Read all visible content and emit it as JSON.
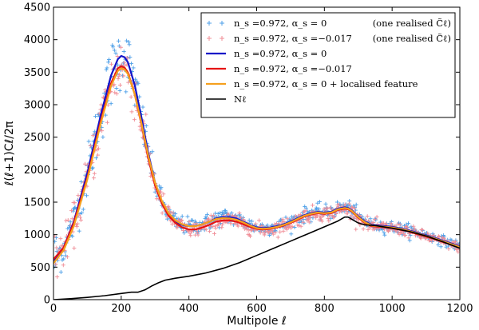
{
  "chart_data": {
    "type": "line",
    "title": "",
    "xlabel": "Multipole ℓ",
    "ylabel": "ℓ(ℓ+1)Cℓ/2π",
    "xlim": [
      0,
      1200
    ],
    "ylim": [
      0,
      4500
    ],
    "xticks": [
      0,
      200,
      400,
      600,
      800,
      1000,
      1200
    ],
    "yticks": [
      0,
      500,
      1000,
      1500,
      2000,
      2500,
      3000,
      3500,
      4000,
      4500
    ],
    "legend_position": "top-right",
    "series": [
      {
        "name": "n_s =0.972, α_s = 0",
        "note": "(one realised C̃ℓ)",
        "kind": "scatter",
        "marker": "+",
        "color": "#4c9fe8",
        "model": "blue"
      },
      {
        "name": "n_s =0.972, α_s =−0.017",
        "note": "(one realised C̃ℓ)",
        "kind": "scatter",
        "marker": "+",
        "color": "#f08c96",
        "model": "red"
      },
      {
        "name": "n_s =0.972, α_s = 0",
        "kind": "line",
        "color": "#1414c8",
        "x": [
          0,
          30,
          60,
          100,
          140,
          170,
          190,
          200,
          210,
          220,
          240,
          260,
          280,
          300,
          320,
          340,
          360,
          380,
          400,
          420,
          440,
          460,
          480,
          500,
          520,
          540,
          560,
          580,
          600,
          620,
          640,
          660,
          680,
          700,
          720,
          740,
          760,
          780,
          800,
          820,
          840,
          860,
          870,
          880,
          900,
          920,
          940,
          960,
          980,
          1000,
          1040,
          1080,
          1120,
          1160,
          1200
        ],
        "y": [
          600,
          800,
          1200,
          1950,
          2850,
          3450,
          3700,
          3750,
          3730,
          3650,
          3300,
          2800,
          2250,
          1800,
          1500,
          1300,
          1200,
          1150,
          1130,
          1135,
          1160,
          1200,
          1250,
          1270,
          1270,
          1250,
          1200,
          1150,
          1110,
          1100,
          1110,
          1130,
          1160,
          1200,
          1250,
          1300,
          1330,
          1350,
          1340,
          1350,
          1400,
          1420,
          1410,
          1380,
          1280,
          1200,
          1150,
          1140,
          1130,
          1120,
          1080,
          1020,
          960,
          890,
          820
        ]
      },
      {
        "name": "n_s =0.972, α_s =−0.017",
        "kind": "line",
        "color": "#e61414",
        "x": [
          0,
          30,
          60,
          100,
          140,
          170,
          190,
          200,
          210,
          220,
          240,
          260,
          280,
          300,
          320,
          340,
          360,
          380,
          400,
          420,
          440,
          460,
          480,
          500,
          520,
          540,
          560,
          580,
          600,
          620,
          640,
          660,
          680,
          700,
          720,
          740,
          760,
          780,
          800,
          820,
          840,
          860,
          870,
          880,
          900,
          920,
          940,
          960,
          980,
          1000,
          1040,
          1080,
          1120,
          1160,
          1200
        ],
        "y": [
          620,
          800,
          1180,
          1880,
          2760,
          3330,
          3560,
          3590,
          3570,
          3490,
          3160,
          2690,
          2170,
          1760,
          1480,
          1290,
          1180,
          1110,
          1080,
          1080,
          1110,
          1150,
          1200,
          1220,
          1220,
          1200,
          1160,
          1120,
          1090,
          1080,
          1090,
          1110,
          1140,
          1180,
          1230,
          1280,
          1310,
          1330,
          1320,
          1330,
          1380,
          1400,
          1390,
          1360,
          1260,
          1180,
          1130,
          1120,
          1110,
          1100,
          1060,
          1000,
          940,
          870,
          800
        ]
      },
      {
        "name": "n_s =0.972, α_s = 0 + localised feature",
        "kind": "line",
        "color": "#f5a01e",
        "x": [
          0,
          30,
          60,
          100,
          140,
          170,
          190,
          200,
          210,
          220,
          240,
          260,
          280,
          300,
          320,
          340,
          360,
          380,
          400,
          420,
          440,
          460,
          480,
          500,
          520,
          540,
          560,
          580,
          600,
          620,
          640,
          660,
          680,
          700,
          720,
          740,
          760,
          780,
          800,
          820,
          840,
          860,
          870,
          880,
          900,
          920,
          940,
          960,
          980,
          1000,
          1040,
          1080,
          1120,
          1160,
          1200
        ],
        "y": [
          560,
          760,
          1130,
          1850,
          2720,
          3290,
          3520,
          3560,
          3540,
          3470,
          3160,
          2710,
          2210,
          1800,
          1520,
          1330,
          1220,
          1160,
          1130,
          1130,
          1160,
          1200,
          1240,
          1255,
          1250,
          1230,
          1190,
          1140,
          1100,
          1090,
          1100,
          1120,
          1150,
          1190,
          1240,
          1290,
          1320,
          1340,
          1330,
          1340,
          1390,
          1410,
          1400,
          1370,
          1270,
          1190,
          1140,
          1130,
          1120,
          1110,
          1070,
          1010,
          950,
          880,
          810
        ]
      },
      {
        "name": "Nℓ",
        "kind": "line",
        "color": "#000000",
        "x": [
          0,
          50,
          100,
          150,
          200,
          230,
          250,
          270,
          290,
          310,
          330,
          360,
          400,
          450,
          500,
          550,
          600,
          650,
          700,
          750,
          800,
          840,
          860,
          870,
          880,
          900,
          920,
          950,
          1000,
          1050,
          1100,
          1150,
          1200
        ],
        "y": [
          0,
          15,
          35,
          60,
          95,
          115,
          115,
          150,
          210,
          260,
          300,
          330,
          360,
          410,
          480,
          570,
          680,
          790,
          900,
          1010,
          1120,
          1210,
          1270,
          1270,
          1240,
          1180,
          1150,
          1140,
          1100,
          1050,
          980,
          890,
          790
        ]
      }
    ]
  }
}
